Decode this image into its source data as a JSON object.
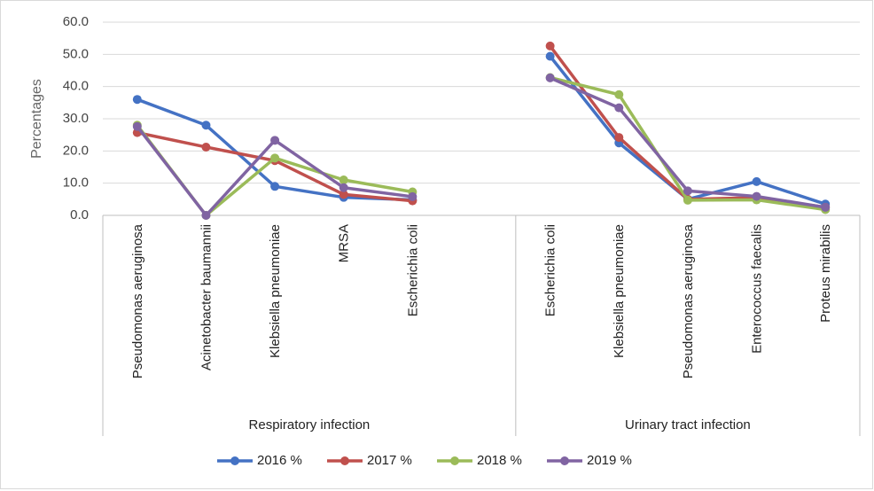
{
  "chart_data": {
    "type": "line",
    "y_label": "Percentages",
    "groups": [
      "Respiratory infection",
      "Urinary tract infection"
    ],
    "categories": [
      "Pseudomonas aeruginosa",
      "Acinetobacter baumannii",
      "Klebsiella pneumoniae",
      "MRSA",
      "Escherichia coli",
      null,
      "Escherichia coli",
      "Klebsiella pneumoniae",
      "Pseudomonas aeruginosa",
      "Enterococcus faecalis",
      "Proteus mirabilis"
    ],
    "series": [
      {
        "name": "2016 %",
        "color": "#4472c4",
        "values": [
          36.0,
          28.0,
          9.0,
          5.6,
          4.8,
          null,
          49.4,
          22.5,
          5.0,
          10.5,
          3.5
        ]
      },
      {
        "name": "2017 %",
        "color": "#c0504d",
        "values": [
          25.7,
          21.2,
          17.0,
          6.5,
          4.5,
          null,
          52.6,
          24.2,
          5.0,
          5.5,
          2.5
        ]
      },
      {
        "name": "2018 %",
        "color": "#9bbb59",
        "values": [
          28.0,
          0.0,
          17.8,
          11.0,
          7.3,
          null,
          42.8,
          37.5,
          4.7,
          4.8,
          1.8
        ]
      },
      {
        "name": "2019 %",
        "color": "#8064a2",
        "values": [
          27.6,
          0.0,
          23.3,
          8.6,
          5.8,
          null,
          42.7,
          33.4,
          7.6,
          5.9,
          2.5
        ]
      }
    ],
    "ylim": [
      0,
      60
    ],
    "yticks": [
      {
        "value": 0,
        "label": "0.0"
      },
      {
        "value": 10,
        "label": "10.0"
      },
      {
        "value": 20,
        "label": "20.0"
      },
      {
        "value": 30,
        "label": "30.0"
      },
      {
        "value": 40,
        "label": "40.0"
      },
      {
        "value": 50,
        "label": "50.0"
      },
      {
        "value": 60,
        "label": "60.0"
      }
    ],
    "grid": true,
    "legend": "bottom"
  }
}
